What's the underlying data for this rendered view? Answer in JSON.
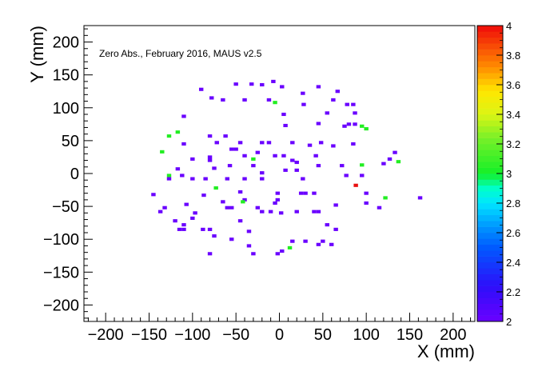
{
  "chart_data": {
    "type": "heatmap",
    "annotation": "Zero Abs., February 2016, MAUS v2.5",
    "xlabel": "X (mm)",
    "ylabel": "Y (mm)",
    "xlim": [
      -225,
      225
    ],
    "ylim": [
      -225,
      225
    ],
    "x_ticks": [
      -200,
      -150,
      -100,
      -50,
      0,
      50,
      100,
      150,
      200
    ],
    "y_ticks": [
      -200,
      -150,
      -100,
      -50,
      0,
      50,
      100,
      150,
      200
    ],
    "bin_size": 5,
    "colorbar": {
      "range": [
        2,
        4
      ],
      "ticks": [
        2,
        2.2,
        2.4,
        2.6,
        2.8,
        3,
        3.2,
        3.4,
        3.6,
        3.8,
        4
      ],
      "tick_labels": [
        "2",
        "2.2",
        "2.4",
        "2.6",
        "2.8",
        "3",
        "3.2",
        "3.4",
        "3.6",
        "3.8",
        "4"
      ]
    },
    "colors": {
      "value_2": "#6a00ff",
      "value_3": "#22ee22",
      "value_4": "#e81010"
    },
    "points": [
      [
        -7,
        140,
        2
      ],
      [
        -20,
        135,
        2
      ],
      [
        -32,
        136,
        2
      ],
      [
        -50,
        136,
        2
      ],
      [
        -90,
        128,
        2
      ],
      [
        3,
        132,
        2
      ],
      [
        45,
        132,
        2
      ],
      [
        -78,
        115,
        2
      ],
      [
        -65,
        112,
        2
      ],
      [
        -40,
        112,
        2
      ],
      [
        -12,
        112,
        2
      ],
      [
        -5,
        108,
        3
      ],
      [
        27,
        122,
        2
      ],
      [
        67,
        125,
        2
      ],
      [
        28,
        105,
        2
      ],
      [
        62,
        112,
        2
      ],
      [
        78,
        105,
        2
      ],
      [
        85,
        105,
        2
      ],
      [
        -110,
        87,
        2
      ],
      [
        5,
        90,
        2
      ],
      [
        55,
        92,
        2
      ],
      [
        87,
        92,
        2
      ],
      [
        -117,
        63,
        3
      ],
      [
        -127,
        57,
        3
      ],
      [
        -80,
        57,
        2
      ],
      [
        -62,
        57,
        2
      ],
      [
        7,
        73,
        2
      ],
      [
        45,
        76,
        2
      ],
      [
        75,
        72,
        2
      ],
      [
        80,
        75,
        2
      ],
      [
        87,
        75,
        2
      ],
      [
        95,
        72,
        3
      ],
      [
        100,
        68,
        3
      ],
      [
        -110,
        45,
        2
      ],
      [
        -72,
        47,
        2
      ],
      [
        -45,
        47,
        2
      ],
      [
        -20,
        47,
        2
      ],
      [
        -12,
        47,
        2
      ],
      [
        15,
        47,
        2
      ],
      [
        35,
        43,
        2
      ],
      [
        48,
        47,
        2
      ],
      [
        62,
        42,
        2
      ],
      [
        85,
        45,
        2
      ],
      [
        -135,
        33,
        3
      ],
      [
        -55,
        37,
        2
      ],
      [
        -50,
        37,
        2
      ],
      [
        -25,
        32,
        2
      ],
      [
        -40,
        27,
        2
      ],
      [
        -30,
        22,
        3
      ],
      [
        -80,
        25,
        2
      ],
      [
        -80,
        20,
        2
      ],
      [
        -100,
        22,
        2
      ],
      [
        -5,
        27,
        2
      ],
      [
        5,
        27,
        2
      ],
      [
        15,
        20,
        2
      ],
      [
        20,
        17,
        2
      ],
      [
        42,
        27,
        2
      ],
      [
        -57,
        12,
        2
      ],
      [
        -75,
        8,
        2
      ],
      [
        -30,
        12,
        2
      ],
      [
        45,
        12,
        2
      ],
      [
        72,
        12,
        2
      ],
      [
        95,
        13,
        3
      ],
      [
        120,
        15,
        2
      ],
      [
        127,
        22,
        2
      ],
      [
        133,
        32,
        2
      ],
      [
        137,
        18,
        3
      ],
      [
        -117,
        7,
        2
      ],
      [
        -127,
        -3,
        3
      ],
      [
        -127,
        -8,
        2
      ],
      [
        -112,
        -3,
        2
      ],
      [
        -100,
        -8,
        2
      ],
      [
        -85,
        -8,
        2
      ],
      [
        -60,
        -8,
        2
      ],
      [
        -40,
        -8,
        2
      ],
      [
        -20,
        -8,
        2
      ],
      [
        -20,
        1,
        2
      ],
      [
        7,
        5,
        2
      ],
      [
        20,
        5,
        2
      ],
      [
        27,
        -8,
        2
      ],
      [
        77,
        -3,
        2
      ],
      [
        95,
        -3,
        2
      ],
      [
        88,
        -18,
        4
      ],
      [
        -73,
        -22,
        3
      ],
      [
        -45,
        -28,
        2
      ],
      [
        -87,
        -33,
        2
      ],
      [
        -145,
        -32,
        2
      ],
      [
        -40,
        -40,
        2
      ],
      [
        -2,
        -30,
        2
      ],
      [
        -2,
        -40,
        2
      ],
      [
        25,
        -30,
        2
      ],
      [
        30,
        -30,
        2
      ],
      [
        40,
        -30,
        2
      ],
      [
        100,
        -30,
        2
      ],
      [
        122,
        -37,
        3
      ],
      [
        162,
        -37,
        2
      ],
      [
        -5,
        -45,
        2
      ],
      [
        -10,
        -58,
        2
      ],
      [
        -42,
        -43,
        3
      ],
      [
        -65,
        -43,
        2
      ],
      [
        -107,
        -47,
        2
      ],
      [
        -132,
        -52,
        2
      ],
      [
        -55,
        -52,
        2
      ],
      [
        -60,
        -52,
        2
      ],
      [
        -25,
        -52,
        2
      ],
      [
        -20,
        -58,
        2
      ],
      [
        20,
        -58,
        2
      ],
      [
        40,
        -58,
        2
      ],
      [
        45,
        -58,
        2
      ],
      [
        65,
        -48,
        2
      ],
      [
        100,
        -45,
        2
      ],
      [
        115,
        -52,
        2
      ],
      [
        -137,
        -58,
        2
      ],
      [
        -97,
        -60,
        2
      ],
      [
        2,
        -60,
        2
      ],
      [
        -100,
        -68,
        2
      ],
      [
        -120,
        -72,
        2
      ],
      [
        -110,
        -78,
        2
      ],
      [
        -45,
        -72,
        2
      ],
      [
        -80,
        -85,
        2
      ],
      [
        -88,
        -85,
        2
      ],
      [
        -35,
        -88,
        2
      ],
      [
        55,
        -78,
        2
      ],
      [
        -110,
        -85,
        2
      ],
      [
        -115,
        -85,
        2
      ],
      [
        65,
        -85,
        2
      ],
      [
        -75,
        -95,
        2
      ],
      [
        -55,
        -100,
        2
      ],
      [
        -35,
        -110,
        2
      ],
      [
        15,
        -103,
        2
      ],
      [
        30,
        -103,
        2
      ],
      [
        45,
        -108,
        2
      ],
      [
        50,
        -103,
        2
      ],
      [
        60,
        -108,
        2
      ],
      [
        -80,
        -122,
        2
      ],
      [
        -30,
        -122,
        2
      ],
      [
        -2,
        -122,
        2
      ],
      [
        3,
        -118,
        2
      ],
      [
        12,
        -113,
        3
      ]
    ]
  }
}
